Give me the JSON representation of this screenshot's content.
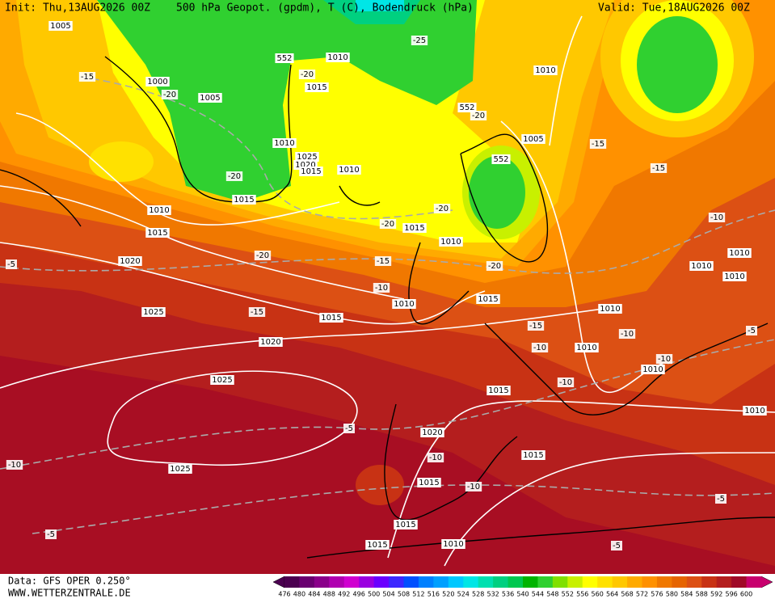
{
  "header": {
    "init": "Init: Thu,13AUG2026 00Z",
    "title": "500 hPa Geopot. (gpdm), T (C), Bodendruck (hPa)",
    "valid": "Valid: Tue,18AUG2026 00Z"
  },
  "footer": {
    "data": "Data: GFS OPER 0.250°",
    "site": "WWW.WETTERZENTRALE.DE"
  },
  "legend": {
    "labels": [
      476,
      480,
      484,
      488,
      492,
      496,
      500,
      504,
      508,
      512,
      516,
      520,
      524,
      528,
      532,
      536,
      540,
      544,
      548,
      552,
      556,
      560,
      564,
      568,
      572,
      576,
      580,
      584,
      588,
      592,
      596,
      600
    ],
    "colors": [
      "#4b0050",
      "#6a0070",
      "#8a008a",
      "#b000b0",
      "#d000d0",
      "#9a00e0",
      "#6a00ff",
      "#3c28ff",
      "#0050ff",
      "#0080ff",
      "#00a0ff",
      "#00c8ff",
      "#00e6e6",
      "#00e0b0",
      "#00d080",
      "#00c850",
      "#00b400",
      "#30d030",
      "#80e000",
      "#c8f000",
      "#ffff00",
      "#ffe100",
      "#ffc800",
      "#ffaa00",
      "#ff9100",
      "#f07800",
      "#e66400",
      "#dc5014",
      "#c83214",
      "#b41e1e",
      "#a00a28",
      "#c8006e"
    ]
  },
  "map": {
    "isobar_labels": [
      "1005",
      "1000",
      "1005",
      "1010",
      "1015",
      "1010",
      "1025",
      "1020",
      "1015",
      "1010",
      "1015",
      "1010",
      "1015",
      "1020",
      "1025",
      "1015",
      "1020",
      "1025",
      "1025",
      "1010",
      "1005",
      "1015",
      "1010",
      "1010",
      "1015",
      "1010",
      "1010",
      "1010",
      "1010",
      "1010",
      "1010",
      "1015",
      "1020",
      "1015",
      "1015",
      "1015",
      "1015",
      "1010",
      "1010"
    ],
    "temperature_labels": [
      "-15",
      "-20",
      "-25",
      "-20",
      "-20",
      "-15",
      "-15",
      "-20",
      "-20",
      "-20",
      "-20",
      "-15",
      "-20",
      "-10",
      "-15",
      "-10",
      "-15",
      "-10",
      "-10",
      "-10",
      "-10",
      "-5",
      "-5",
      "-10",
      "-5",
      "-10",
      "-10",
      "-5",
      "-5",
      "-5"
    ],
    "geopotential_labels": [
      "552",
      "552",
      "552"
    ]
  }
}
